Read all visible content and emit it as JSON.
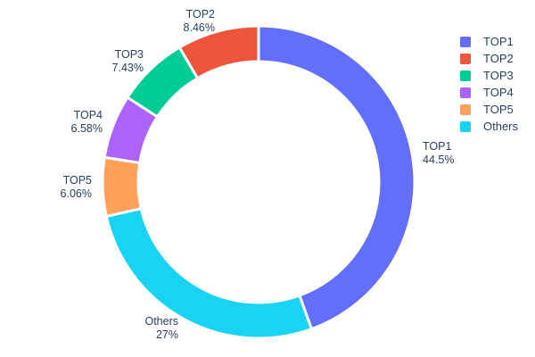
{
  "chart_data": {
    "type": "pie",
    "hole": 0.77,
    "title": "",
    "background": "#ffffff",
    "text_color": "#2a3f5f",
    "legend_position": "right",
    "slices": [
      {
        "label": "TOP1",
        "value": 44.5,
        "pct_label": "44.5%",
        "color": "#636EFA"
      },
      {
        "label": "TOP2",
        "value": 8.46,
        "pct_label": "8.46%",
        "color": "#EF553B"
      },
      {
        "label": "TOP3",
        "value": 7.43,
        "pct_label": "7.43%",
        "color": "#00CC96"
      },
      {
        "label": "TOP4",
        "value": 6.58,
        "pct_label": "6.58%",
        "color": "#AB63FA"
      },
      {
        "label": "TOP5",
        "value": 6.06,
        "pct_label": "6.06%",
        "color": "#FFA15A"
      },
      {
        "label": "Others",
        "value": 27.0,
        "pct_label": "27%",
        "color": "#19D3F3"
      }
    ]
  }
}
